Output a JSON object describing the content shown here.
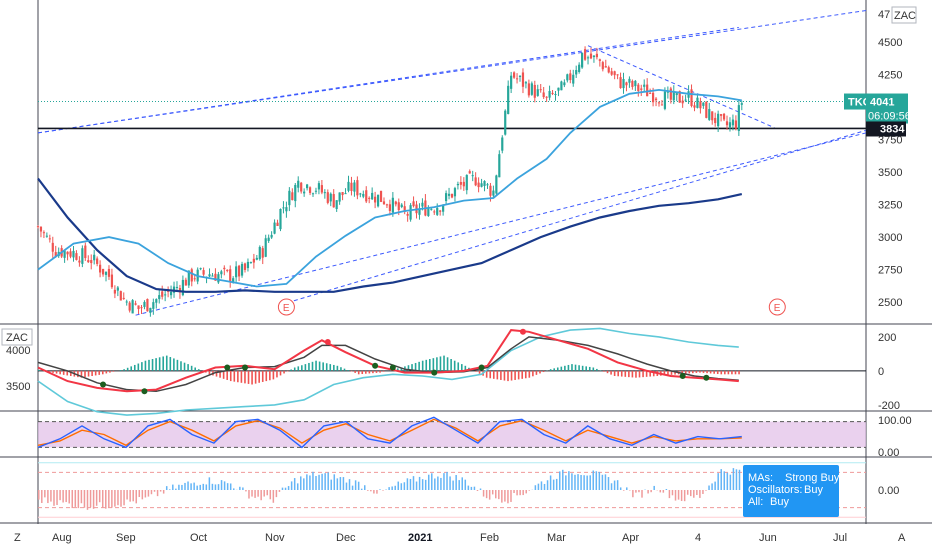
{
  "ticker": {
    "symbol": "TKG",
    "price": "4041",
    "countdown": "06:09:56",
    "currency": "ZAC"
  },
  "hline": {
    "value": 3834,
    "label": "3834"
  },
  "top_cut_label": "47",
  "left_toolbar": {
    "z_label": "Z"
  },
  "right_toolbar": {
    "a_label": "A"
  },
  "event_marker": "E",
  "colors": {
    "up": "#26a69a",
    "down": "#ef5350",
    "ma_fast": "#3ba3dd",
    "ma_slow": "#1a3a8a",
    "trend": "#3d5afe",
    "price_line": "#26a69a",
    "stoch_fill": "#e1bee7",
    "macd_line": "#2962ff",
    "signal_line": "#f23645",
    "hist_pos": "#26a69a",
    "hist_neg": "#ef5350",
    "tooltip_bg": "#2196f3"
  },
  "chart_data": [
    {
      "type": "candlestick",
      "panel": "price",
      "yticks": [
        2500,
        2750,
        3000,
        3250,
        3500,
        3750,
        4000,
        4250,
        4500
      ],
      "ylim": [
        2340,
        4790
      ],
      "x_labels": [
        "Aug",
        "Sep",
        "Oct",
        "Nov",
        "Dec",
        "2021",
        "Feb",
        "Mar",
        "Apr",
        "4",
        "Jun",
        "Jul"
      ],
      "close_path": [
        [
          0,
          3080
        ],
        [
          6,
          2900
        ],
        [
          12,
          2880
        ],
        [
          18,
          2830
        ],
        [
          24,
          2700
        ],
        [
          29,
          2520
        ],
        [
          34,
          2450
        ],
        [
          40,
          2520
        ],
        [
          46,
          2600
        ],
        [
          52,
          2700
        ],
        [
          58,
          2720
        ],
        [
          64,
          2700
        ],
        [
          70,
          2740
        ],
        [
          76,
          2900
        ],
        [
          82,
          3200
        ],
        [
          88,
          3420
        ],
        [
          94,
          3380
        ],
        [
          100,
          3280
        ],
        [
          106,
          3380
        ],
        [
          112,
          3330
        ],
        [
          118,
          3280
        ],
        [
          124,
          3170
        ],
        [
          130,
          3220
        ],
        [
          136,
          3250
        ],
        [
          142,
          3380
        ],
        [
          148,
          3450
        ],
        [
          154,
          3350
        ],
        [
          160,
          4250
        ],
        [
          166,
          4150
        ],
        [
          172,
          4050
        ],
        [
          178,
          4150
        ],
        [
          184,
          4400
        ],
        [
          190,
          4350
        ],
        [
          196,
          4200
        ],
        [
          202,
          4150
        ],
        [
          208,
          4100
        ],
        [
          214,
          4050
        ],
        [
          220,
          4080
        ],
        [
          226,
          3960
        ],
        [
          232,
          3850
        ],
        [
          236,
          3880
        ],
        [
          238,
          4041
        ]
      ],
      "series": [
        {
          "name": "",
          "values": [
            [
              0,
              3450
            ],
            [
              10,
              3150
            ],
            [
              20,
              2900
            ],
            [
              30,
              2700
            ],
            [
              40,
              2600
            ],
            [
              50,
              2580
            ],
            [
              60,
              2580
            ],
            [
              70,
              2590
            ],
            [
              80,
              2580
            ],
            [
              90,
              2580
            ],
            [
              100,
              2580
            ],
            [
              110,
              2620
            ],
            [
              120,
              2650
            ],
            [
              130,
              2700
            ],
            [
              140,
              2750
            ],
            [
              150,
              2800
            ],
            [
              160,
              2900
            ],
            [
              170,
              3000
            ],
            [
              180,
              3080
            ],
            [
              190,
              3150
            ],
            [
              200,
              3200
            ],
            [
              210,
              3240
            ],
            [
              220,
              3260
            ],
            [
              230,
              3290
            ],
            [
              238,
              3330
            ]
          ]
        },
        {
          "name": "",
          "values": [
            [
              0,
              2750
            ],
            [
              12,
              2950
            ],
            [
              24,
              3000
            ],
            [
              34,
              2950
            ],
            [
              44,
              2800
            ],
            [
              54,
              2700
            ],
            [
              64,
              2660
            ],
            [
              74,
              2620
            ],
            [
              84,
              2640
            ],
            [
              94,
              2850
            ],
            [
              104,
              3010
            ],
            [
              114,
              3150
            ],
            [
              124,
              3200
            ],
            [
              134,
              3230
            ],
            [
              144,
              3280
            ],
            [
              154,
              3300
            ],
            [
              162,
              3450
            ],
            [
              172,
              3600
            ],
            [
              180,
              3800
            ],
            [
              190,
              4000
            ],
            [
              200,
              4100
            ],
            [
              210,
              4130
            ],
            [
              220,
              4100
            ],
            [
              230,
              4080
            ],
            [
              238,
              4050
            ]
          ]
        }
      ],
      "trendlines": [
        {
          "from": [
            0,
            3800
          ],
          "to": [
            280,
            4740
          ]
        },
        {
          "from": [
            0,
            3800
          ],
          "to": [
            237,
            4610
          ]
        },
        {
          "from": [
            33,
            2400
          ],
          "to": [
            280,
            3800
          ]
        },
        {
          "from": [
            82,
            2480
          ],
          "to": [
            280,
            3820
          ]
        },
        {
          "from": [
            186,
            4470
          ],
          "to": [
            249,
            3840
          ]
        }
      ],
      "markers_x": [
        84,
        250
      ]
    },
    {
      "type": "line",
      "panel": "macd",
      "left_yticks": [
        3500,
        4000
      ],
      "right_yticks": [
        200,
        0,
        -200
      ],
      "ylim": [
        -230,
        270
      ],
      "series": [
        {
          "name": "",
          "values": [
            [
              0,
              20
            ],
            [
              10,
              -60
            ],
            [
              20,
              -100
            ],
            [
              30,
              -120
            ],
            [
              40,
              -110
            ],
            [
              50,
              -40
            ],
            [
              60,
              20
            ],
            [
              70,
              30
            ],
            [
              80,
              10
            ],
            [
              90,
              120
            ],
            [
              96,
              180
            ],
            [
              104,
              110
            ],
            [
              114,
              30
            ],
            [
              124,
              -10
            ],
            [
              134,
              -10
            ],
            [
              144,
              0
            ],
            [
              152,
              30
            ],
            [
              160,
              240
            ],
            [
              166,
              230
            ],
            [
              176,
              180
            ],
            [
              186,
              130
            ],
            [
              196,
              50
            ],
            [
              206,
              0
            ],
            [
              214,
              -30
            ],
            [
              222,
              -40
            ],
            [
              230,
              -50
            ],
            [
              237,
              -60
            ]
          ]
        },
        {
          "name": "",
          "values": [
            [
              0,
              50
            ],
            [
              10,
              0
            ],
            [
              20,
              -70
            ],
            [
              30,
              -110
            ],
            [
              40,
              -120
            ],
            [
              50,
              -80
            ],
            [
              60,
              -10
            ],
            [
              70,
              20
            ],
            [
              80,
              25
            ],
            [
              90,
              80
            ],
            [
              96,
              150
            ],
            [
              104,
              150
            ],
            [
              114,
              70
            ],
            [
              124,
              10
            ],
            [
              134,
              -10
            ],
            [
              144,
              -5
            ],
            [
              152,
              20
            ],
            [
              160,
              130
            ],
            [
              166,
              200
            ],
            [
              176,
              180
            ],
            [
              186,
              150
            ],
            [
              196,
              100
            ],
            [
              206,
              40
            ],
            [
              214,
              0
            ],
            [
              222,
              -30
            ],
            [
              230,
              -45
            ],
            [
              237,
              -55
            ]
          ]
        },
        {
          "name": "",
          "values": [
            [
              0,
              -60
            ],
            [
              10,
              -180
            ],
            [
              20,
              -240
            ],
            [
              30,
              -260
            ],
            [
              40,
              -250
            ],
            [
              50,
              -230
            ],
            [
              60,
              -220
            ],
            [
              70,
              -210
            ],
            [
              80,
              -200
            ],
            [
              90,
              -170
            ],
            [
              100,
              -80
            ],
            [
              110,
              -40
            ],
            [
              120,
              -20
            ],
            [
              130,
              -30
            ],
            [
              140,
              -50
            ],
            [
              150,
              -20
            ],
            [
              160,
              120
            ],
            [
              170,
              200
            ],
            [
              180,
              240
            ],
            [
              190,
              250
            ],
            [
              200,
              220
            ],
            [
              210,
              200
            ],
            [
              220,
              170
            ],
            [
              230,
              150
            ],
            [
              237,
              140
            ]
          ]
        }
      ],
      "histogram": [
        5,
        -20,
        -40,
        -20,
        10,
        60,
        90,
        40,
        -20,
        -60,
        -80,
        -50,
        20,
        60,
        30,
        -20,
        -10,
        20,
        60,
        90,
        30,
        -40,
        -60,
        -40,
        10,
        40,
        20,
        -30,
        -40,
        -30,
        -20,
        -10,
        -20
      ]
    },
    {
      "type": "line",
      "panel": "stochastic",
      "right_yticks": [
        "100.00",
        "0.00"
      ],
      "ylim": [
        0,
        100
      ],
      "band": [
        20,
        80
      ],
      "series": [
        {
          "name": "",
          "values": [
            20,
            40,
            70,
            40,
            20,
            70,
            85,
            50,
            30,
            80,
            85,
            60,
            20,
            70,
            80,
            40,
            30,
            70,
            90,
            60,
            30,
            80,
            85,
            50,
            30,
            70,
            40,
            25,
            50,
            30,
            45,
            40,
            45
          ]
        },
        {
          "name": "",
          "values": [
            25,
            35,
            60,
            50,
            25,
            60,
            80,
            60,
            35,
            70,
            82,
            65,
            30,
            60,
            75,
            50,
            35,
            60,
            85,
            65,
            35,
            70,
            82,
            60,
            35,
            60,
            45,
            30,
            45,
            35,
            40,
            40,
            42
          ]
        }
      ]
    },
    {
      "type": "bar",
      "panel": "technical-rating",
      "right_yticks": [
        "0.00"
      ],
      "ylim": [
        -1,
        1
      ],
      "values": [
        -0.3,
        -0.4,
        -0.5,
        -0.5,
        -0.4,
        -0.3,
        0.0,
        0.2,
        0.3,
        0.2,
        -0.2,
        -0.3,
        0.3,
        0.5,
        0.4,
        0.2,
        -0.1,
        0.2,
        0.4,
        0.5,
        0.3,
        -0.2,
        -0.3,
        0.0,
        0.4,
        0.6,
        0.5,
        0.3,
        -0.2,
        0.1,
        -0.3,
        -0.2,
        0.6
      ]
    }
  ],
  "tooltip": {
    "lines": [
      {
        "key": "MAs:",
        "value": "Strong Buy"
      },
      {
        "key": "Oscillators:",
        "value": "Buy"
      },
      {
        "key": "All:",
        "value": "Buy"
      }
    ]
  }
}
